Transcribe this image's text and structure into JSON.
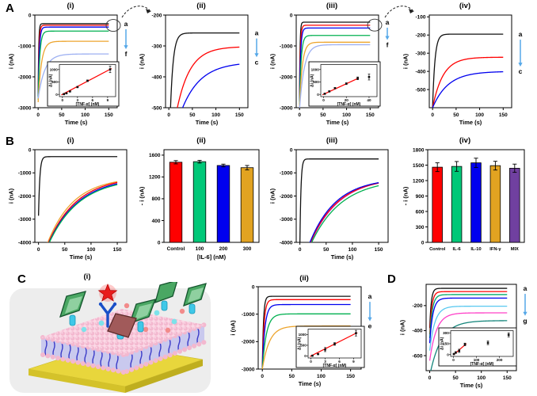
{
  "figure": {
    "panels": {
      "A": {
        "label": "A"
      },
      "B": {
        "label": "B"
      },
      "C": {
        "label": "C"
      },
      "D": {
        "label": "D"
      }
    }
  },
  "chart_data": [
    {
      "id": "Ai",
      "panel": "A",
      "type": "line",
      "title": "(i)",
      "xlabel": "Time (s)",
      "ylabel": "i (nA)",
      "xlim": [
        -7,
        168
      ],
      "xticks": [
        0,
        50,
        100,
        150
      ],
      "ylim": [
        -3000,
        0
      ],
      "yticks": [
        0,
        -1000,
        -2000,
        -3000
      ],
      "series": [
        {
          "name": "a",
          "color": "#111111",
          "i0": -2600,
          "i_final": -280,
          "tau": 1.2
        },
        {
          "name": "b",
          "color": "#ff0000",
          "i0": -2650,
          "i_final": -330,
          "tau": 1.8
        },
        {
          "name": "c",
          "color": "#0000ee",
          "i0": -2700,
          "i_final": -390,
          "tau": 2.4
        },
        {
          "name": "d",
          "color": "#00b050",
          "i0": -2750,
          "i_final": -520,
          "tau": 3.5
        },
        {
          "name": "e",
          "color": "#eda52e",
          "i0": -2820,
          "i_final": -850,
          "tau": 7
        },
        {
          "name": "f",
          "color": "#9db0f2",
          "i0": -2700,
          "i_final": -1260,
          "tau": 14
        }
      ],
      "end_labels": {
        "top": "a",
        "bottom": "f"
      },
      "circle_end": true,
      "inset": {
        "xlabel": "[TNF-α] (nM)",
        "ylabel": "Δi (nA)",
        "xlim": [
          -0.6,
          10.6
        ],
        "xticks": [
          0,
          3,
          6,
          9
        ],
        "ylim": [
          -90,
          1200
        ],
        "yticks": [
          0,
          500,
          1000
        ],
        "points": [
          [
            0.3,
            12
          ],
          [
            0.8,
            45
          ],
          [
            1.5,
            120
          ],
          [
            3,
            295
          ],
          [
            5,
            548
          ],
          [
            9.5,
            1005
          ]
        ],
        "errors": [
          12,
          15,
          18,
          22,
          28,
          130
        ],
        "fit": [
          [
            -0.2,
            -20
          ],
          [
            9.8,
            1040
          ]
        ],
        "line_color": "#ff0000",
        "rect": {
          "x": 52,
          "y": 64,
          "w": 90,
          "h": 56
        }
      }
    },
    {
      "id": "Aii",
      "panel": "A",
      "type": "line",
      "title": "(ii)",
      "xlabel": "Time (s)",
      "ylabel": "i (nA)",
      "xlim": [
        -7,
        168
      ],
      "xticks": [
        0,
        50,
        100,
        150
      ],
      "ylim": [
        -500,
        -200
      ],
      "yticks": [
        -200,
        -300,
        -400,
        -500
      ],
      "series": [
        {
          "name": "a",
          "color": "#111111",
          "i0": -700,
          "i_final": -258,
          "tau": 6
        },
        {
          "name": "b",
          "color": "#ff0000",
          "i0": -680,
          "i_final": -302,
          "tau": 28
        },
        {
          "name": "c",
          "color": "#0000ee",
          "i0": -660,
          "i_final": -352,
          "tau": 40
        }
      ],
      "end_labels": {
        "top": "a",
        "bottom": "c"
      },
      "circle_end": false,
      "inset": null
    },
    {
      "id": "Aiii",
      "panel": "A",
      "type": "line",
      "title": "(iii)",
      "xlabel": "Time (s)",
      "ylabel": "i (nA)",
      "xlim": [
        -7,
        168
      ],
      "xticks": [
        0,
        50,
        100,
        150
      ],
      "ylim": [
        -3000,
        0
      ],
      "yticks": [
        0,
        -1000,
        -2000,
        -3000
      ],
      "series": [
        {
          "name": "a",
          "color": "#111111",
          "i0": -2600,
          "i_final": -230,
          "tau": 1.2
        },
        {
          "name": "b",
          "color": "#ff0000",
          "i0": -2700,
          "i_final": -330,
          "tau": 1.8
        },
        {
          "name": "c",
          "color": "#0000ee",
          "i0": -2800,
          "i_final": -420,
          "tau": 2.4
        },
        {
          "name": "d",
          "color": "#00b050",
          "i0": -2900,
          "i_final": -660,
          "tau": 3.5
        },
        {
          "name": "e",
          "color": "#eda52e",
          "i0": -2950,
          "i_final": -880,
          "tau": 6
        },
        {
          "name": "f",
          "color": "#9db0f2",
          "i0": -3050,
          "i_final": -960,
          "tau": 10
        }
      ],
      "end_labels": {
        "top": "a",
        "bottom": "f"
      },
      "circle_end": true,
      "inset": {
        "xlabel": "[TNF-α] (nM)",
        "ylabel": "Δi (nA)",
        "xlim": [
          -2.5,
          47
        ],
        "xticks": [
          0,
          20,
          40
        ],
        "ylim": [
          -90,
          1200
        ],
        "yticks": [
          0,
          500,
          1000
        ],
        "points": [
          [
            1,
            25
          ],
          [
            5,
            120
          ],
          [
            10,
            250
          ],
          [
            20,
            430
          ],
          [
            30,
            645
          ],
          [
            40,
            700
          ]
        ],
        "errors": [
          15,
          20,
          25,
          35,
          55,
          120
        ],
        "fit": [
          [
            -1,
            -15
          ],
          [
            31,
            660
          ]
        ],
        "line_color": "#ff0000",
        "rect": {
          "x": 52,
          "y": 64,
          "w": 90,
          "h": 56
        }
      }
    },
    {
      "id": "Aiv",
      "panel": "A",
      "type": "line",
      "title": "(iv)",
      "xlabel": "Time (s)",
      "ylabel": "i (nA)",
      "xlim": [
        -7,
        168
      ],
      "xticks": [
        0,
        50,
        100,
        150
      ],
      "ylim": [
        -600,
        -90
      ],
      "yticks": [
        -100,
        -200,
        -300,
        -400,
        -500
      ],
      "series": [
        {
          "name": "a",
          "color": "#111111",
          "i0": -600,
          "i_final": -195,
          "tau": 5
        },
        {
          "name": "b",
          "color": "#ff0000",
          "i0": -600,
          "i_final": -322,
          "tau": 22
        },
        {
          "name": "c",
          "color": "#0000ee",
          "i0": -600,
          "i_final": -400,
          "tau": 33
        }
      ],
      "end_labels": {
        "top": "a",
        "bottom": "c"
      },
      "circle_end": false,
      "inset": null
    },
    {
      "id": "Bi",
      "panel": "B",
      "type": "line",
      "title": "(i)",
      "xlabel": "Time (s)",
      "ylabel": "i (nA)",
      "xlim": [
        -7,
        168
      ],
      "xticks": [
        0,
        50,
        100,
        150
      ],
      "ylim": [
        -4000,
        0
      ],
      "yticks": [
        0,
        -1000,
        -2000,
        -3000,
        -4000
      ],
      "series": [
        {
          "name": "control",
          "color": "#111111",
          "i0": -2850,
          "i_final": -300,
          "tau": 2.5
        },
        {
          "name": "orange",
          "color": "#eda52e",
          "i0": -5200,
          "i_final": -1180,
          "tau": 50
        },
        {
          "name": "red",
          "color": "#ff0000",
          "i0": -5200,
          "i_final": -1150,
          "tau": 55
        },
        {
          "name": "blue",
          "color": "#0000ee",
          "i0": -5200,
          "i_final": -1180,
          "tau": 57
        },
        {
          "name": "green",
          "color": "#00b050",
          "i0": -5200,
          "i_final": -1210,
          "tau": 58
        }
      ],
      "end_labels": null,
      "circle_end": false,
      "inset": null
    },
    {
      "id": "Bii",
      "panel": "B",
      "type": "bar",
      "title": "(ii)",
      "xlabel": "[IL-6] (nM)",
      "ylabel": "- i (nA)",
      "ylim": [
        0,
        1700
      ],
      "yticks": [
        0,
        400,
        800,
        1200,
        1600
      ],
      "categories": [
        "Control",
        "100",
        "200",
        "300"
      ],
      "values": [
        1470,
        1480,
        1410,
        1370
      ],
      "errors": [
        30,
        25,
        25,
        40
      ],
      "colors": [
        "#ff0000",
        "#00c878",
        "#0000ee",
        "#e2a321"
      ]
    },
    {
      "id": "Biii",
      "panel": "B",
      "type": "line",
      "title": "(iii)",
      "xlabel": "Time (s)",
      "ylabel": "i (nA)",
      "xlim": [
        -7,
        168
      ],
      "xticks": [
        0,
        50,
        100,
        150
      ],
      "ylim": [
        -4000,
        0
      ],
      "yticks": [
        0,
        -1000,
        -2000,
        -3000,
        -4000
      ],
      "series": [
        {
          "name": "control",
          "color": "#111111",
          "i0": -4100,
          "i_final": -400,
          "tau": 2
        },
        {
          "name": "magenta",
          "color": "#c838d8",
          "i0": -5300,
          "i_final": -1170,
          "tau": 55
        },
        {
          "name": "red",
          "color": "#ff0000",
          "i0": -5300,
          "i_final": -1200,
          "tau": 53
        },
        {
          "name": "blue",
          "color": "#0000ee",
          "i0": -5300,
          "i_final": -1220,
          "tau": 50
        },
        {
          "name": "green",
          "color": "#00b050",
          "i0": -5300,
          "i_final": -1250,
          "tau": 58
        }
      ],
      "end_labels": null,
      "circle_end": false,
      "inset": null
    },
    {
      "id": "Biv",
      "panel": "B",
      "type": "bar",
      "title": "(iv)",
      "xlabel": "",
      "ylabel": "- i (nA)",
      "ylim": [
        0,
        1800
      ],
      "yticks": [
        0,
        300,
        600,
        900,
        1200,
        1500,
        1800
      ],
      "categories": [
        "Control",
        "IL-6",
        "IL-10",
        "IFN-γ",
        "MIX"
      ],
      "values": [
        1460,
        1475,
        1545,
        1490,
        1440
      ],
      "errors": [
        85,
        95,
        90,
        85,
        80
      ],
      "colors": [
        "#ff0000",
        "#00c878",
        "#0000ee",
        "#e2a321",
        "#7040a0"
      ]
    },
    {
      "id": "Ci",
      "panel": "C",
      "type": "schematic",
      "title": "(i)"
    },
    {
      "id": "Cii",
      "panel": "C",
      "type": "line",
      "title": "(ii)",
      "xlabel": "Time (s)",
      "ylabel": "i (nA)",
      "xlim": [
        -7,
        168
      ],
      "xticks": [
        0,
        50,
        100,
        150
      ],
      "ylim": [
        -3000,
        0
      ],
      "yticks": [
        0,
        -1000,
        -2000,
        -3000
      ],
      "series": [
        {
          "name": "a",
          "color": "#111111",
          "i0": -2950,
          "i_final": -350,
          "tau": 2
        },
        {
          "name": "b",
          "color": "#ff0000",
          "i0": -2950,
          "i_final": -470,
          "tau": 3
        },
        {
          "name": "c",
          "color": "#0000ee",
          "i0": -2950,
          "i_final": -650,
          "tau": 4.5
        },
        {
          "name": "d",
          "color": "#00b050",
          "i0": -2980,
          "i_final": -990,
          "tau": 7
        },
        {
          "name": "e",
          "color": "#eda52e",
          "i0": -3000,
          "i_final": -1430,
          "tau": 12
        }
      ],
      "end_labels": {
        "top": "a",
        "bottom": "e"
      },
      "circle_end": false,
      "inset": {
        "xlabel": "[TNF-α] (nM)",
        "ylabel": "Δi (nA)",
        "xlim": [
          -0.6,
          10.6
        ],
        "xticks": [
          0,
          3,
          6,
          9
        ],
        "ylim": [
          -90,
          1250
        ],
        "yticks": [
          0,
          500,
          1000
        ],
        "points": [
          [
            0.3,
            15
          ],
          [
            1.5,
            90
          ],
          [
            3,
            300
          ],
          [
            5,
            560
          ],
          [
            9.5,
            1060
          ]
        ],
        "errors": [
          12,
          18,
          95,
          60,
          130
        ],
        "fit": [
          [
            -0.2,
            -20
          ],
          [
            9.8,
            1090
          ]
        ],
        "line_color": "#ff0000",
        "rect": {
          "x": 86,
          "y": 54,
          "w": 86,
          "h": 52
        }
      }
    },
    {
      "id": "D",
      "panel": "D",
      "type": "line",
      "title": "",
      "xlabel": "Time (s)",
      "ylabel": "i (nA)",
      "xlim": [
        -7,
        168
      ],
      "xticks": [
        0,
        50,
        100,
        150
      ],
      "ylim": [
        -720,
        -30
      ],
      "yticks": [
        -200,
        -400,
        -600
      ],
      "series": [
        {
          "name": "a",
          "color": "#111111",
          "i0": -380,
          "i_final": -62,
          "tau": 3
        },
        {
          "name": "b",
          "color": "#ff0000",
          "i0": -430,
          "i_final": -88,
          "tau": 4
        },
        {
          "name": "c",
          "color": "#00a86b",
          "i0": -460,
          "i_final": -112,
          "tau": 5
        },
        {
          "name": "d",
          "color": "#0000ee",
          "i0": -500,
          "i_final": -140,
          "tau": 6
        },
        {
          "name": "e",
          "color": "#58c8f0",
          "i0": -560,
          "i_final": -205,
          "tau": 10
        },
        {
          "name": "f",
          "color": "#ff40c8",
          "i0": -640,
          "i_final": -258,
          "tau": 13
        },
        {
          "name": "g",
          "color": "#15857b",
          "i0": -760,
          "i_final": -320,
          "tau": 22
        }
      ],
      "end_labels": {
        "top": "a",
        "bottom": "g"
      },
      "circle_end": false,
      "inset": {
        "xlabel": "[TNF-α] (nM)",
        "ylabel": "Δi (nA)",
        "xlim": [
          -12,
          260
        ],
        "xticks": [
          0,
          100,
          200
        ],
        "ylim": [
          -25,
          330
        ],
        "yticks": [
          0,
          150,
          300
        ],
        "points": [
          [
            2,
            8
          ],
          [
            10,
            28
          ],
          [
            25,
            52
          ],
          [
            50,
            140
          ],
          [
            150,
            162
          ],
          [
            240,
            272
          ]
        ],
        "errors": [
          8,
          12,
          22,
          18,
          25,
          28
        ],
        "fit": [
          [
            0,
            -5
          ],
          [
            56,
            150
          ]
        ],
        "line_color": "#ff0000",
        "rect": {
          "x": 52,
          "y": 60,
          "w": 98,
          "h": 48
        }
      }
    }
  ]
}
